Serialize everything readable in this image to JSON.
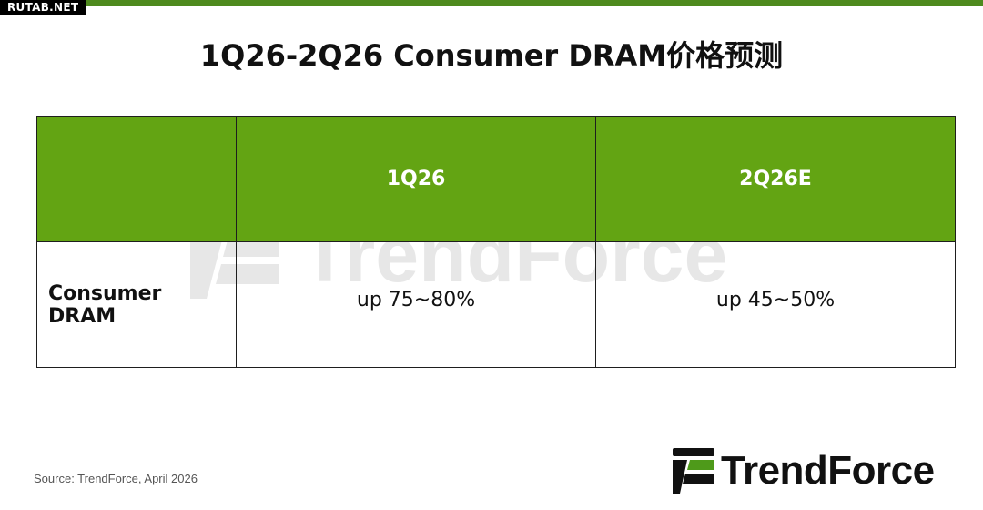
{
  "site_badge": "RUTAB.NET",
  "title": "1Q26-2Q26 Consumer DRAM价格预测",
  "table": {
    "headers": [
      "",
      "1Q26",
      "2Q26E"
    ],
    "rows": [
      {
        "label": "Consumer DRAM",
        "values": [
          "up 75~80%",
          "up 45~50%"
        ]
      }
    ]
  },
  "watermark_text": "TrendForce",
  "source": "Source: TrendForce, April 2026",
  "logo_text": "TrendForce",
  "colors": {
    "accent_bar": "#4e8a1e",
    "header_fill": "#63a413",
    "logo_green": "#4e9a1a"
  }
}
